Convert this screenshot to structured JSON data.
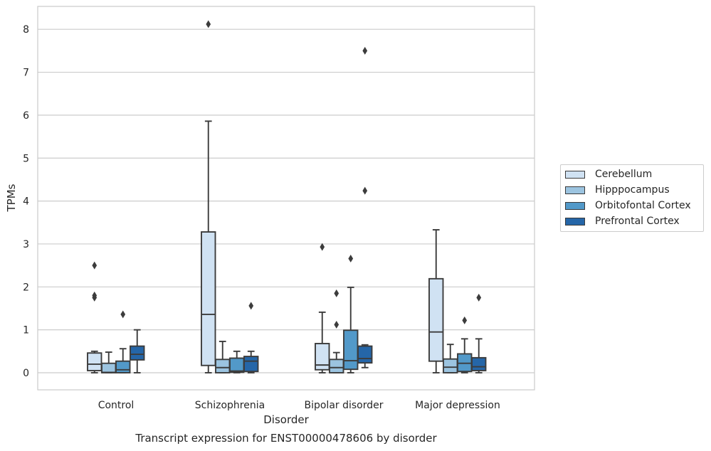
{
  "chart_data": {
    "type": "box",
    "title": "",
    "caption": "Transcript expression for ENST00000478606 by disorder",
    "xlabel": "Disorder",
    "ylabel": "TPMs",
    "ylim": [
      -0.4,
      8.55
    ],
    "yticks": [
      0,
      1,
      2,
      3,
      4,
      5,
      6,
      7,
      8
    ],
    "grid": "horizontal",
    "legend_position": "right",
    "categories": [
      "Control",
      "Schizophrenia",
      "Bipolar disorder",
      "Major depression"
    ],
    "series": [
      {
        "name": "Cerebellum",
        "color": "#d0e2f3",
        "boxes": [
          {
            "whislo": 0.0,
            "q1": 0.05,
            "med": 0.2,
            "q3": 0.46,
            "whishi": 0.5,
            "fliers": [
              1.75,
              1.8,
              2.5
            ]
          },
          {
            "whislo": 0.0,
            "q1": 0.17,
            "med": 1.36,
            "q3": 3.28,
            "whishi": 5.86,
            "fliers": [
              8.12
            ]
          },
          {
            "whislo": 0.0,
            "q1": 0.07,
            "med": 0.18,
            "q3": 0.68,
            "whishi": 1.41,
            "fliers": [
              2.93
            ]
          },
          {
            "whislo": 0.0,
            "q1": 0.27,
            "med": 0.95,
            "q3": 2.19,
            "whishi": 3.33,
            "fliers": []
          }
        ]
      },
      {
        "name": "Hipppocampus",
        "color": "#9cc4e0",
        "boxes": [
          {
            "whislo": 0.0,
            "q1": 0.0,
            "med": 0.01,
            "q3": 0.22,
            "whishi": 0.48,
            "fliers": []
          },
          {
            "whislo": 0.0,
            "q1": 0.0,
            "med": 0.12,
            "q3": 0.31,
            "whishi": 0.73,
            "fliers": []
          },
          {
            "whislo": 0.0,
            "q1": 0.0,
            "med": 0.12,
            "q3": 0.31,
            "whishi": 0.47,
            "fliers": [
              1.12,
              1.85
            ]
          },
          {
            "whislo": 0.0,
            "q1": 0.0,
            "med": 0.13,
            "q3": 0.32,
            "whishi": 0.66,
            "fliers": []
          }
        ]
      },
      {
        "name": "Orbitofontal Cortex",
        "color": "#5299c9",
        "boxes": [
          {
            "whislo": 0.0,
            "q1": 0.0,
            "med": 0.07,
            "q3": 0.27,
            "whishi": 0.56,
            "fliers": [
              1.36
            ]
          },
          {
            "whislo": 0.0,
            "q1": 0.01,
            "med": 0.04,
            "q3": 0.34,
            "whishi": 0.5,
            "fliers": []
          },
          {
            "whislo": 0.0,
            "q1": 0.08,
            "med": 0.28,
            "q3": 0.99,
            "whishi": 1.99,
            "fliers": [
              2.66
            ]
          },
          {
            "whislo": 0.0,
            "q1": 0.03,
            "med": 0.22,
            "q3": 0.44,
            "whishi": 0.79,
            "fliers": [
              1.22
            ]
          }
        ]
      },
      {
        "name": "Prefrontal Cortex",
        "color": "#2566a8",
        "boxes": [
          {
            "whislo": 0.0,
            "q1": 0.3,
            "med": 0.43,
            "q3": 0.62,
            "whishi": 1.0,
            "fliers": []
          },
          {
            "whislo": 0.0,
            "q1": 0.03,
            "med": 0.27,
            "q3": 0.38,
            "whishi": 0.5,
            "fliers": [
              1.56
            ]
          },
          {
            "whislo": 0.12,
            "q1": 0.23,
            "med": 0.33,
            "q3": 0.62,
            "whishi": 0.65,
            "fliers": [
              4.24,
              7.5
            ]
          },
          {
            "whislo": 0.0,
            "q1": 0.05,
            "med": 0.14,
            "q3": 0.35,
            "whishi": 0.79,
            "fliers": [
              1.75
            ]
          }
        ]
      }
    ]
  }
}
